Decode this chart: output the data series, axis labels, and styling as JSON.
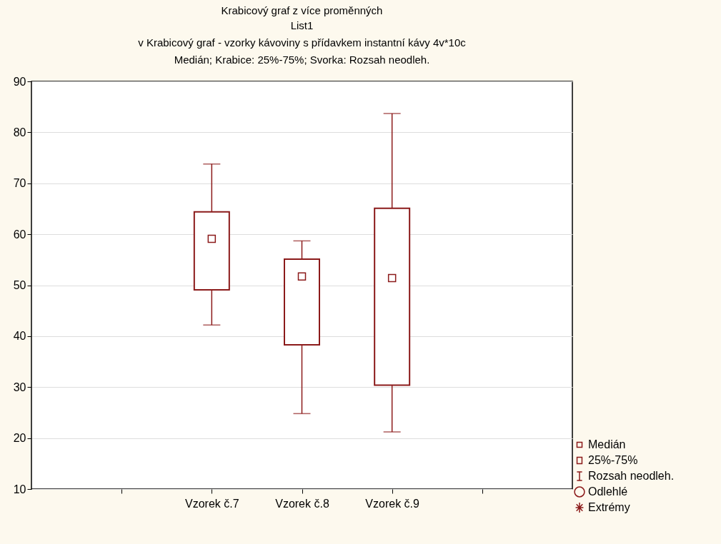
{
  "chart_data": {
    "type": "box",
    "title": "Krabicový graf z více proměnných",
    "subtitle": "List1\nv Krabicový graf - vzorky kávoviny s přídavkem instantní kávy 4v*10c\nMedián; Krabice: 25%-75%; Svorka: Rozsah neodleh.",
    "categories": [
      null,
      "Vzorek č.7",
      "Vzorek č.8",
      "Vzorek č.9",
      null
    ],
    "boxes": [
      null,
      {
        "low": 42.2,
        "q1": 49.1,
        "median": 59.1,
        "q3": 64.4,
        "high": 73.8
      },
      {
        "low": 24.8,
        "q1": 38.3,
        "median": 51.7,
        "q3": 55.1,
        "high": 58.7
      },
      {
        "low": 21.2,
        "q1": 30.4,
        "median": 51.4,
        "q3": 65.1,
        "high": 83.7
      },
      null
    ],
    "color": "#8b1a1a",
    "ylim": [
      10,
      90
    ],
    "yticks": [
      10,
      20,
      30,
      40,
      50,
      60,
      70,
      80,
      90
    ],
    "grid": "y",
    "annotations": [
      "Medián",
      "25%-75%",
      "Rozsah neodleh.",
      "Odlehlé",
      "Extrémy"
    ]
  }
}
